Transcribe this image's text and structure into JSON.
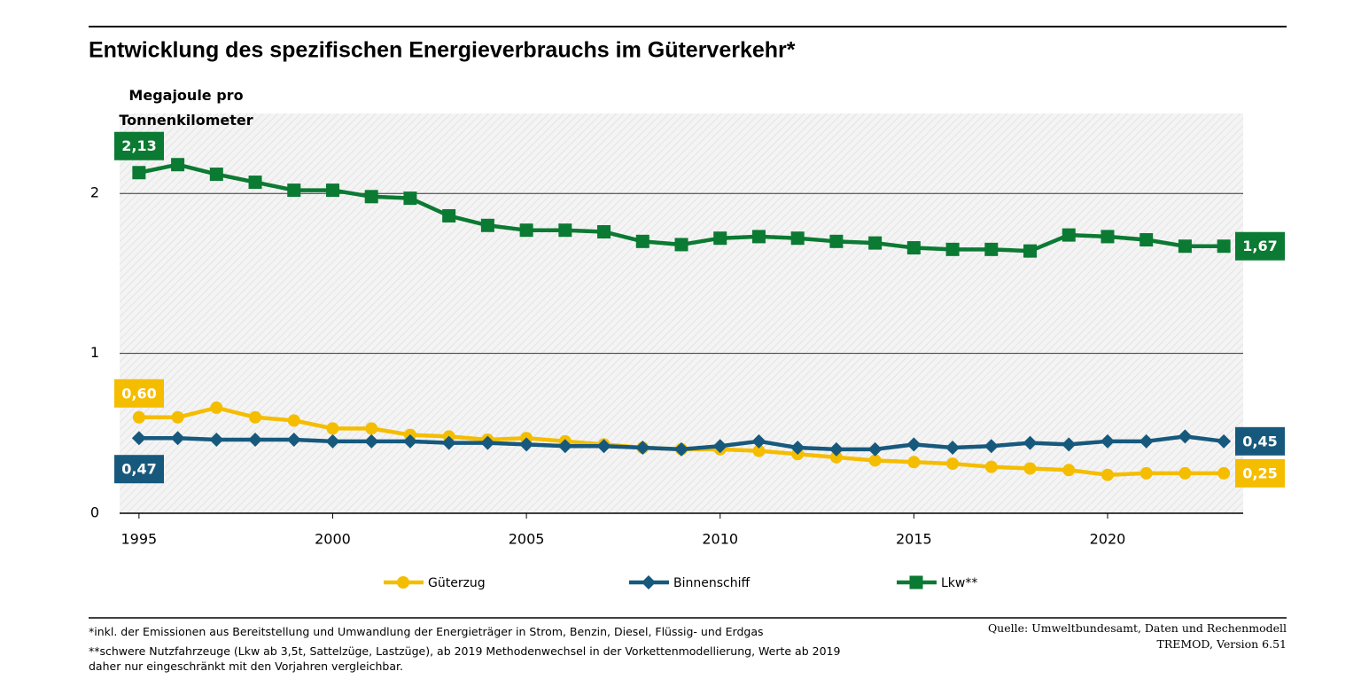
{
  "chart_data": {
    "type": "line",
    "title": "Entwicklung des spezifischen Energieverbrauchs im Güterverkehr*",
    "y_label": "Megajoule pro Tonnenkilometer",
    "x": [
      1995,
      1996,
      1997,
      1998,
      1999,
      2000,
      2001,
      2002,
      2003,
      2004,
      2005,
      2006,
      2007,
      2008,
      2009,
      2010,
      2011,
      2012,
      2013,
      2014,
      2015,
      2016,
      2017,
      2018,
      2019,
      2020,
      2021,
      2022,
      2023
    ],
    "xlim": [
      1994.5,
      2023.5
    ],
    "xticks": [
      1995,
      2000,
      2005,
      2010,
      2015,
      2020
    ],
    "ylim": [
      0,
      2.5
    ],
    "yticks": [
      0,
      1,
      2
    ],
    "grid": true,
    "series": [
      {
        "name": "Güterzug",
        "color": "#f5bd00",
        "marker": "circle",
        "values": [
          0.6,
          0.6,
          0.66,
          0.6,
          0.58,
          0.53,
          0.53,
          0.49,
          0.48,
          0.46,
          0.47,
          0.45,
          0.43,
          0.41,
          0.4,
          0.4,
          0.39,
          0.37,
          0.35,
          0.33,
          0.32,
          0.31,
          0.29,
          0.28,
          0.27,
          0.24,
          0.25,
          0.25,
          0.25
        ],
        "value_labels": [
          "0,60",
          null,
          null,
          null,
          null,
          null,
          null,
          null,
          null,
          null,
          null,
          null,
          null,
          null,
          null,
          null,
          null,
          null,
          null,
          null,
          null,
          null,
          null,
          null,
          null,
          null,
          null,
          null,
          "0,25"
        ]
      },
      {
        "name": "Binnenschiff",
        "color": "#17597d",
        "marker": "diamond",
        "values": [
          0.47,
          0.47,
          0.46,
          0.46,
          0.46,
          0.45,
          0.45,
          0.45,
          0.44,
          0.44,
          0.43,
          0.42,
          0.42,
          0.41,
          0.4,
          0.42,
          0.45,
          0.41,
          0.4,
          0.4,
          0.43,
          0.41,
          0.42,
          0.44,
          0.43,
          0.45,
          0.45,
          0.48,
          0.45
        ],
        "value_labels": [
          "0,47",
          null,
          null,
          null,
          null,
          null,
          null,
          null,
          null,
          null,
          null,
          null,
          null,
          null,
          null,
          null,
          null,
          null,
          null,
          null,
          null,
          null,
          null,
          null,
          null,
          null,
          null,
          null,
          "0,45"
        ]
      },
      {
        "name": "Lkw**",
        "color": "#0b7a32",
        "marker": "square",
        "values": [
          2.13,
          2.18,
          2.12,
          2.07,
          2.02,
          2.02,
          1.98,
          1.97,
          1.86,
          1.8,
          1.77,
          1.77,
          1.76,
          1.7,
          1.68,
          1.72,
          1.73,
          1.72,
          1.7,
          1.69,
          1.66,
          1.65,
          1.65,
          1.64,
          1.74,
          1.73,
          1.71,
          1.67,
          1.67
        ],
        "value_labels": [
          "2,13",
          null,
          null,
          null,
          null,
          null,
          null,
          null,
          null,
          null,
          null,
          null,
          null,
          null,
          null,
          null,
          null,
          null,
          null,
          null,
          null,
          null,
          null,
          null,
          null,
          null,
          null,
          null,
          "1,67"
        ]
      }
    ],
    "notes": [
      "*inkl. der Emissionen aus Bereitstellung und Umwandlung der Energieträger in Strom, Benzin, Diesel, Flüssig- und Erdgas",
      "**schwere Nutzfahrzeuge (Lkw ab 3,5t, Sattelzüge, Lastzüge), ab 2019 Methodenwechsel in der Vorkettenmodellierung, Werte ab 2019 daher nur eingeschränkt mit den Vorjahren vergleichbar."
    ],
    "source": "Quelle: Umweltbundesamt, Daten und Rechenmodell TREMOD, Version 6.51"
  }
}
